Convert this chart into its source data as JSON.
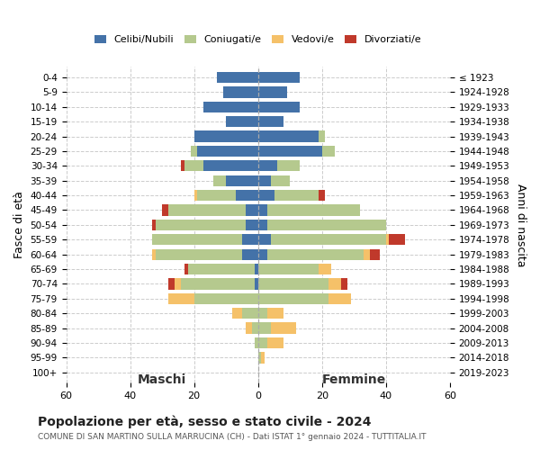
{
  "age_groups": [
    "0-4",
    "5-9",
    "10-14",
    "15-19",
    "20-24",
    "25-29",
    "30-34",
    "35-39",
    "40-44",
    "45-49",
    "50-54",
    "55-59",
    "60-64",
    "65-69",
    "70-74",
    "75-79",
    "80-84",
    "85-89",
    "90-94",
    "95-99",
    "100+"
  ],
  "birth_years": [
    "2019-2023",
    "2014-2018",
    "2009-2013",
    "2004-2008",
    "1999-2003",
    "1994-1998",
    "1989-1993",
    "1984-1988",
    "1979-1983",
    "1974-1978",
    "1969-1973",
    "1964-1968",
    "1959-1963",
    "1954-1958",
    "1949-1953",
    "1944-1948",
    "1939-1943",
    "1934-1938",
    "1929-1933",
    "1924-1928",
    "≤ 1923"
  ],
  "males": {
    "celibi": [
      13,
      11,
      17,
      10,
      20,
      19,
      17,
      10,
      7,
      4,
      4,
      5,
      5,
      1,
      1,
      0,
      0,
      0,
      0,
      0,
      0
    ],
    "coniugati": [
      0,
      0,
      0,
      0,
      0,
      2,
      6,
      4,
      12,
      24,
      28,
      28,
      27,
      21,
      23,
      20,
      5,
      2,
      1,
      0,
      0
    ],
    "vedovi": [
      0,
      0,
      0,
      0,
      0,
      0,
      0,
      0,
      1,
      0,
      0,
      0,
      1,
      0,
      2,
      8,
      3,
      2,
      0,
      0,
      0
    ],
    "divorziati": [
      0,
      0,
      0,
      0,
      0,
      0,
      1,
      0,
      0,
      2,
      1,
      0,
      0,
      1,
      2,
      0,
      0,
      0,
      0,
      0,
      0
    ]
  },
  "females": {
    "nubili": [
      13,
      9,
      13,
      8,
      19,
      20,
      6,
      4,
      5,
      3,
      3,
      4,
      3,
      0,
      0,
      0,
      0,
      0,
      0,
      0,
      0
    ],
    "coniugate": [
      0,
      0,
      0,
      0,
      2,
      4,
      7,
      6,
      14,
      29,
      37,
      36,
      30,
      19,
      22,
      22,
      3,
      4,
      3,
      1,
      0
    ],
    "vedove": [
      0,
      0,
      0,
      0,
      0,
      0,
      0,
      0,
      0,
      0,
      0,
      1,
      2,
      4,
      4,
      7,
      5,
      8,
      5,
      1,
      0
    ],
    "divorziate": [
      0,
      0,
      0,
      0,
      0,
      0,
      0,
      0,
      2,
      0,
      0,
      5,
      3,
      0,
      2,
      0,
      0,
      0,
      0,
      0,
      0
    ]
  },
  "colors": {
    "celibi_nubili": "#4472a8",
    "coniugati": "#b5c98e",
    "vedovi": "#f5c169",
    "divorziati": "#c0392b"
  },
  "xlim": 60,
  "title": "Popolazione per età, sesso e stato civile - 2024",
  "subtitle": "COMUNE DI SAN MARTINO SULLA MARRUCINA (CH) - Dati ISTAT 1° gennaio 2024 - TUTTITALIA.IT",
  "xlabel_left": "Maschi",
  "xlabel_right": "Femmine",
  "ylabel_left": "Fasce di età",
  "ylabel_right": "Anni di nascita",
  "legend_labels": [
    "Celibi/Nubili",
    "Coniugati/e",
    "Vedovi/e",
    "Divorziati/e"
  ],
  "background_color": "#ffffff",
  "grid_color": "#cccccc"
}
